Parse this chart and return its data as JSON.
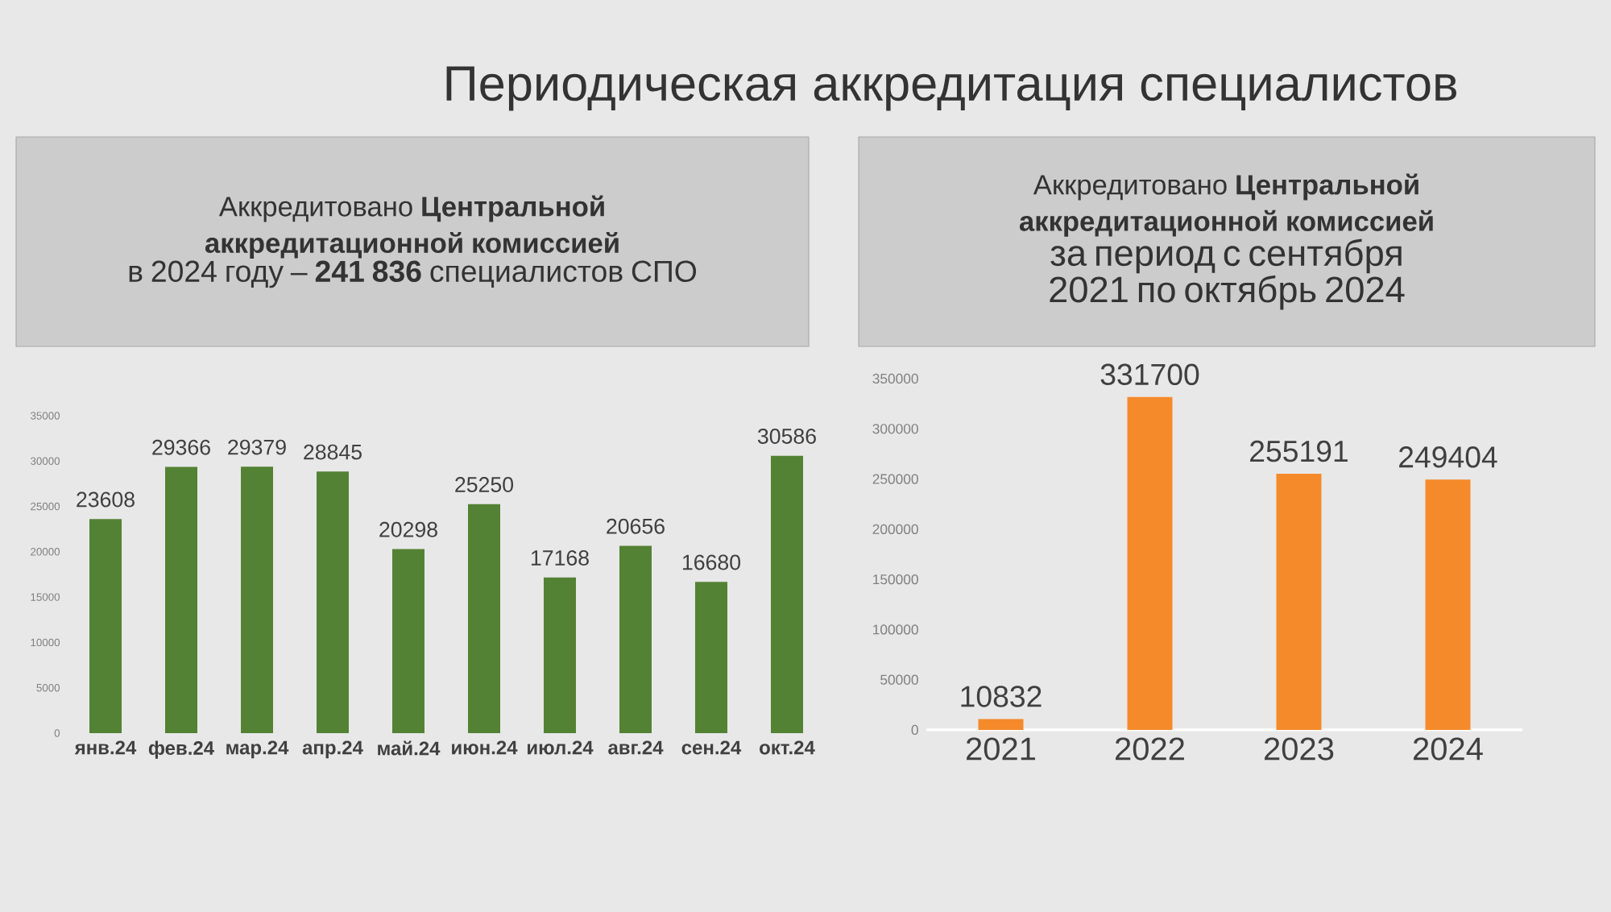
{
  "chart_data": [
    {
      "type": "bar",
      "title": "Аккредитовано **Центральной аккредитационной комиссией**",
      "subtitle": "в 2024 году – **241 836** специалистов СПО",
      "annotations": [
        "Периодическая аккредитация специалистов"
      ],
      "categories": [
        "янв.24",
        "фев.24",
        "мар.24",
        "апр.24",
        "май.24",
        "июн.24",
        "июл.24",
        "авг.24",
        "сен.24",
        "окт.24"
      ],
      "values": [
        23608,
        29366,
        29379,
        28845,
        20298,
        25250,
        17168,
        20656,
        16680,
        30586
      ],
      "color": "#548235",
      "ylim": [
        0,
        35000
      ],
      "yticks": [
        0,
        5000,
        10000,
        15000,
        20000,
        25000,
        30000,
        35000
      ],
      "grid": false,
      "data_labels": true
    },
    {
      "type": "bar",
      "title": "Аккредитовано **Центральной аккредитационной комиссией**",
      "subtitle": "за период с сентября 2021 по октябрь 2024",
      "categories": [
        "2021",
        "2022",
        "2023",
        "2024"
      ],
      "values": [
        10832,
        331700,
        255191,
        249404
      ],
      "color": "#f58a2b",
      "ylim": [
        0,
        350000
      ],
      "yticks": [
        0,
        50000,
        100000,
        150000,
        200000,
        250000,
        300000,
        350000
      ],
      "grid": false,
      "data_labels": true
    }
  ]
}
